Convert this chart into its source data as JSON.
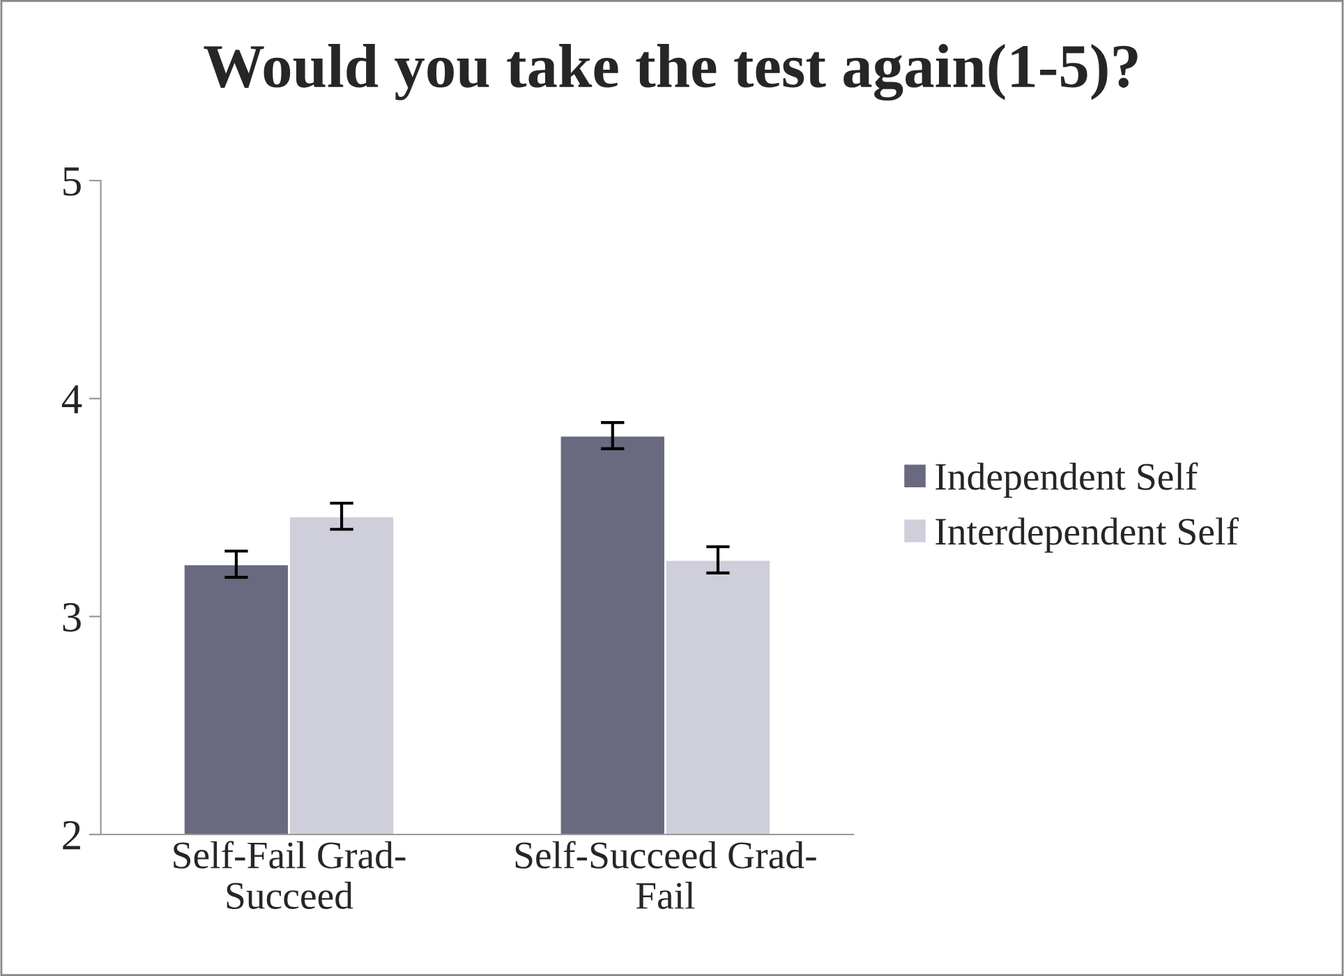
{
  "chart_data": {
    "type": "bar",
    "title": "Would you take the test again(1-5)?",
    "categories": [
      "Self-Fail Grad-\nSucceed",
      "Self-Succeed Grad-\nFail"
    ],
    "series": [
      {
        "name": "Independent Self",
        "color": "#696a80",
        "values": [
          3.24,
          3.83
        ],
        "errors": [
          0.06,
          0.06
        ]
      },
      {
        "name": "Interdependent Self",
        "color": "#cfcfdb",
        "values": [
          3.46,
          3.26
        ],
        "errors": [
          0.06,
          0.06
        ]
      }
    ],
    "ylim": [
      2,
      5
    ],
    "yticks": [
      2,
      3,
      4,
      5
    ],
    "grid": false,
    "legend": "right"
  }
}
